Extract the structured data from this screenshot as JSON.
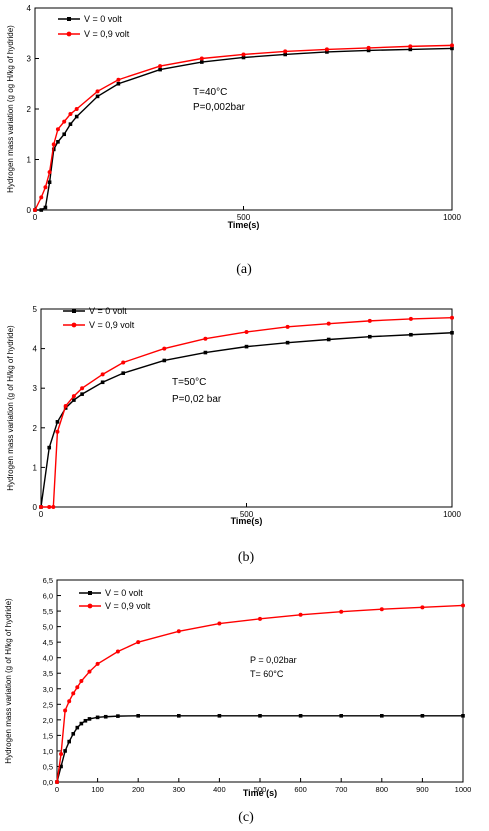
{
  "chart_data": [
    {
      "type": "line",
      "caption": "(a)",
      "xlabel": "Time(s)",
      "ylabel": "Hydrogen mass variation (g og H/kg of hydride)",
      "xlim": [
        0,
        1000
      ],
      "ylim": [
        0,
        4
      ],
      "xticks": [
        0,
        500,
        1000
      ],
      "xtick_labels": [
        "0",
        "500",
        "1000"
      ],
      "yticks": [
        0,
        1,
        2,
        3,
        4
      ],
      "ytick_labels": [
        "0",
        "1",
        "2",
        "3",
        "4"
      ],
      "annotation": [
        "T=40°C",
        "P=0,002bar"
      ],
      "legend_position": "top-left",
      "series": [
        {
          "name": "V = 0 volt",
          "color": "#000000",
          "marker": "square",
          "x": [
            0,
            15,
            25,
            35,
            45,
            55,
            70,
            85,
            100,
            150,
            200,
            300,
            400,
            500,
            600,
            700,
            800,
            900,
            1000
          ],
          "y": [
            0,
            0,
            0.05,
            0.55,
            1.2,
            1.35,
            1.5,
            1.7,
            1.85,
            2.25,
            2.5,
            2.78,
            2.93,
            3.02,
            3.08,
            3.13,
            3.16,
            3.18,
            3.2
          ]
        },
        {
          "name": "V = 0,9 volt",
          "color": "#ff0000",
          "marker": "circle",
          "x": [
            0,
            15,
            25,
            35,
            45,
            55,
            70,
            85,
            100,
            150,
            200,
            300,
            400,
            500,
            600,
            700,
            800,
            900,
            1000
          ],
          "y": [
            0,
            0.25,
            0.45,
            0.75,
            1.3,
            1.6,
            1.75,
            1.9,
            2.0,
            2.35,
            2.58,
            2.85,
            3.0,
            3.08,
            3.14,
            3.18,
            3.21,
            3.24,
            3.26
          ]
        }
      ]
    },
    {
      "type": "line",
      "caption": "(b)",
      "xlabel": "Time(s)",
      "ylabel": "Hydrogen mass variation (g of H/kg of hydride)",
      "xlim": [
        0,
        1000
      ],
      "ylim": [
        0,
        5
      ],
      "xticks": [
        0,
        500,
        1000
      ],
      "xtick_labels": [
        "0",
        "500",
        "1000"
      ],
      "yticks": [
        0,
        1,
        2,
        3,
        4,
        5
      ],
      "ytick_labels": [
        "0",
        "1",
        "2",
        "3",
        "4",
        "5"
      ],
      "annotation": [
        "T=50°C",
        "P=0,02 bar"
      ],
      "legend_position": "top-left",
      "series": [
        {
          "name": "V = 0 volt",
          "color": "#000000",
          "marker": "square",
          "x": [
            0,
            20,
            40,
            60,
            80,
            100,
            150,
            200,
            300,
            400,
            500,
            600,
            700,
            800,
            900,
            1000
          ],
          "y": [
            0,
            1.5,
            2.15,
            2.5,
            2.7,
            2.85,
            3.15,
            3.38,
            3.7,
            3.9,
            4.05,
            4.15,
            4.23,
            4.3,
            4.35,
            4.4
          ]
        },
        {
          "name": "V = 0,9 volt",
          "color": "#ff0000",
          "marker": "circle",
          "x": [
            0,
            20,
            30,
            40,
            60,
            80,
            100,
            150,
            200,
            300,
            400,
            500,
            600,
            700,
            800,
            900,
            1000
          ],
          "y": [
            0,
            0,
            0,
            1.9,
            2.55,
            2.8,
            3.0,
            3.35,
            3.65,
            4.0,
            4.25,
            4.42,
            4.55,
            4.63,
            4.7,
            4.75,
            4.78
          ]
        }
      ]
    },
    {
      "type": "line",
      "caption": "(c)",
      "xlabel": "Time (s)",
      "ylabel": "Hydrogen mass variation (g of H/kg of hydride)",
      "xlim": [
        0,
        1000
      ],
      "ylim": [
        0,
        6.5
      ],
      "xticks": [
        0,
        100,
        200,
        300,
        400,
        500,
        600,
        700,
        800,
        900,
        1000
      ],
      "xtick_labels": [
        "0",
        "100",
        "200",
        "300",
        "400",
        "500",
        "600",
        "700",
        "800",
        "900",
        "1000"
      ],
      "yticks": [
        0,
        0.5,
        1.0,
        1.5,
        2.0,
        2.5,
        3.0,
        3.5,
        4.0,
        4.5,
        5.0,
        5.5,
        6.0,
        6.5
      ],
      "ytick_labels": [
        "0,0",
        "0,5",
        "1,0",
        "1,5",
        "2,0",
        "2,5",
        "3,0",
        "3,5",
        "4,0",
        "4,5",
        "5,0",
        "5,5",
        "6,0",
        "6,5"
      ],
      "annotation": [
        "P = 0,02bar",
        "T= 60°C"
      ],
      "legend_position": "top-left",
      "series": [
        {
          "name": "V = 0 volt",
          "color": "#000000",
          "marker": "square",
          "x": [
            0,
            10,
            20,
            30,
            40,
            50,
            60,
            70,
            80,
            100,
            120,
            150,
            200,
            300,
            400,
            500,
            600,
            700,
            800,
            900,
            1000
          ],
          "y": [
            0,
            0.5,
            1.0,
            1.3,
            1.55,
            1.75,
            1.88,
            1.97,
            2.03,
            2.08,
            2.1,
            2.12,
            2.13,
            2.13,
            2.13,
            2.13,
            2.13,
            2.13,
            2.13,
            2.13,
            2.13
          ]
        },
        {
          "name": "V = 0,9 volt",
          "color": "#ff0000",
          "marker": "circle",
          "x": [
            0,
            10,
            20,
            30,
            40,
            50,
            60,
            80,
            100,
            150,
            200,
            300,
            400,
            500,
            600,
            700,
            800,
            900,
            1000
          ],
          "y": [
            0,
            0.9,
            2.3,
            2.6,
            2.85,
            3.05,
            3.25,
            3.55,
            3.8,
            4.2,
            4.5,
            4.85,
            5.1,
            5.25,
            5.38,
            5.48,
            5.56,
            5.62,
            5.68
          ]
        }
      ]
    }
  ]
}
